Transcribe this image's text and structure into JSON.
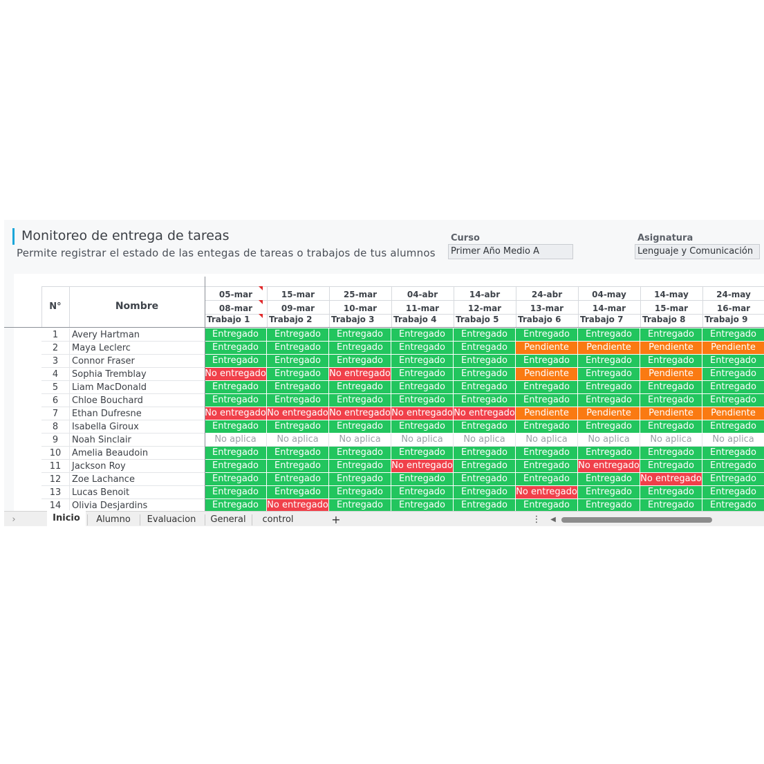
{
  "header": {
    "title": "Monitoreo de entrega de tareas",
    "subtitle": "Permite registrar el estado de las entegas de tareas o trabajos de tus alumnos",
    "curso_label": "Curso",
    "curso_value": "Primer Año Medio A",
    "asignatura_label": "Asignatura",
    "asignatura_value": "Lenguaje y Comunicación"
  },
  "table": {
    "col_num": "N°",
    "col_name": "Nombre",
    "assignments": [
      {
        "start": "05-mar",
        "due": "08-mar",
        "label": "Trabajo 1"
      },
      {
        "start": "15-mar",
        "due": "09-mar",
        "label": "Trabajo 2"
      },
      {
        "start": "25-mar",
        "due": "10-mar",
        "label": "Trabajo 3"
      },
      {
        "start": "04-abr",
        "due": "11-mar",
        "label": "Trabajo 4"
      },
      {
        "start": "14-abr",
        "due": "12-mar",
        "label": "Trabajo 5"
      },
      {
        "start": "24-abr",
        "due": "13-mar",
        "label": "Trabajo 6"
      },
      {
        "start": "04-may",
        "due": "14-mar",
        "label": "Trabajo 7"
      },
      {
        "start": "14-may",
        "due": "15-mar",
        "label": "Trabajo 8"
      },
      {
        "start": "24-may",
        "due": "16-mar",
        "label": "Trabajo 9"
      }
    ],
    "students": [
      {
        "n": "1",
        "name": "Avery Hartman",
        "status": [
          "Entregado",
          "Entregado",
          "Entregado",
          "Entregado",
          "Entregado",
          "Entregado",
          "Entregado",
          "Entregado",
          "Entregado"
        ]
      },
      {
        "n": "2",
        "name": "Maya Leclerc",
        "status": [
          "Entregado",
          "Entregado",
          "Entregado",
          "Entregado",
          "Entregado",
          "Pendiente",
          "Pendiente",
          "Pendiente",
          "Pendiente"
        ]
      },
      {
        "n": "3",
        "name": "Connor Fraser",
        "status": [
          "Entregado",
          "Entregado",
          "Entregado",
          "Entregado",
          "Entregado",
          "Entregado",
          "Entregado",
          "Entregado",
          "Entregado"
        ]
      },
      {
        "n": "4",
        "name": "Sophia Tremblay",
        "status": [
          "No entregado",
          "Entregado",
          "No entregado",
          "Entregado",
          "Entregado",
          "Pendiente",
          "Entregado",
          "Pendiente",
          "Entregado"
        ]
      },
      {
        "n": "5",
        "name": "Liam MacDonald",
        "status": [
          "Entregado",
          "Entregado",
          "Entregado",
          "Entregado",
          "Entregado",
          "Entregado",
          "Entregado",
          "Entregado",
          "Entregado"
        ]
      },
      {
        "n": "6",
        "name": "Chloe Bouchard",
        "status": [
          "Entregado",
          "Entregado",
          "Entregado",
          "Entregado",
          "Entregado",
          "Entregado",
          "Entregado",
          "Entregado",
          "Entregado"
        ]
      },
      {
        "n": "7",
        "name": "Ethan Dufresne",
        "status": [
          "No entregado",
          "No entregado",
          "No entregado",
          "No entregado",
          "No entregado",
          "Pendiente",
          "Pendiente",
          "Pendiente",
          "Pendiente"
        ]
      },
      {
        "n": "8",
        "name": "Isabella Giroux",
        "status": [
          "Entregado",
          "Entregado",
          "Entregado",
          "Entregado",
          "Entregado",
          "Entregado",
          "Entregado",
          "Entregado",
          "Entregado"
        ]
      },
      {
        "n": "9",
        "name": "Noah Sinclair",
        "status": [
          "No aplica",
          "No aplica",
          "No aplica",
          "No aplica",
          "No aplica",
          "No aplica",
          "No aplica",
          "No aplica",
          "No aplica"
        ]
      },
      {
        "n": "10",
        "name": "Amelia Beaudoin",
        "status": [
          "Entregado",
          "Entregado",
          "Entregado",
          "Entregado",
          "Entregado",
          "Entregado",
          "Entregado",
          "Entregado",
          "Entregado"
        ]
      },
      {
        "n": "11",
        "name": "Jackson Roy",
        "status": [
          "Entregado",
          "Entregado",
          "Entregado",
          "No entregado",
          "Entregado",
          "Entregado",
          "No entregado",
          "Entregado",
          "Entregado"
        ]
      },
      {
        "n": "12",
        "name": "Zoe Lachance",
        "status": [
          "Entregado",
          "Entregado",
          "Entregado",
          "Entregado",
          "Entregado",
          "Entregado",
          "Entregado",
          "No entregado",
          "Entregado"
        ]
      },
      {
        "n": "13",
        "name": "Lucas Benoit",
        "status": [
          "Entregado",
          "Entregado",
          "Entregado",
          "Entregado",
          "Entregado",
          "No entregado",
          "Entregado",
          "Entregado",
          "Entregado"
        ]
      },
      {
        "n": "14",
        "name": "Olivia Desjardins",
        "status": [
          "Entregado",
          "No entregado",
          "Entregado",
          "Entregado",
          "Entregado",
          "Entregado",
          "Entregado",
          "Entregado",
          "Entregado"
        ]
      }
    ]
  },
  "status_colors": {
    "Entregado": "#22c55e",
    "Pendiente": "#fa7a12",
    "No entregado": "#f0404a",
    "No aplica": "#ffffff"
  },
  "tabs": {
    "items": [
      "Inicio",
      "Alumno",
      "Evaluacion",
      "General",
      "control"
    ],
    "active": "Inicio",
    "add_icon": "+",
    "menu_icon": "⋮",
    "nav_icon": "›",
    "scroll_left_icon": "◀"
  }
}
